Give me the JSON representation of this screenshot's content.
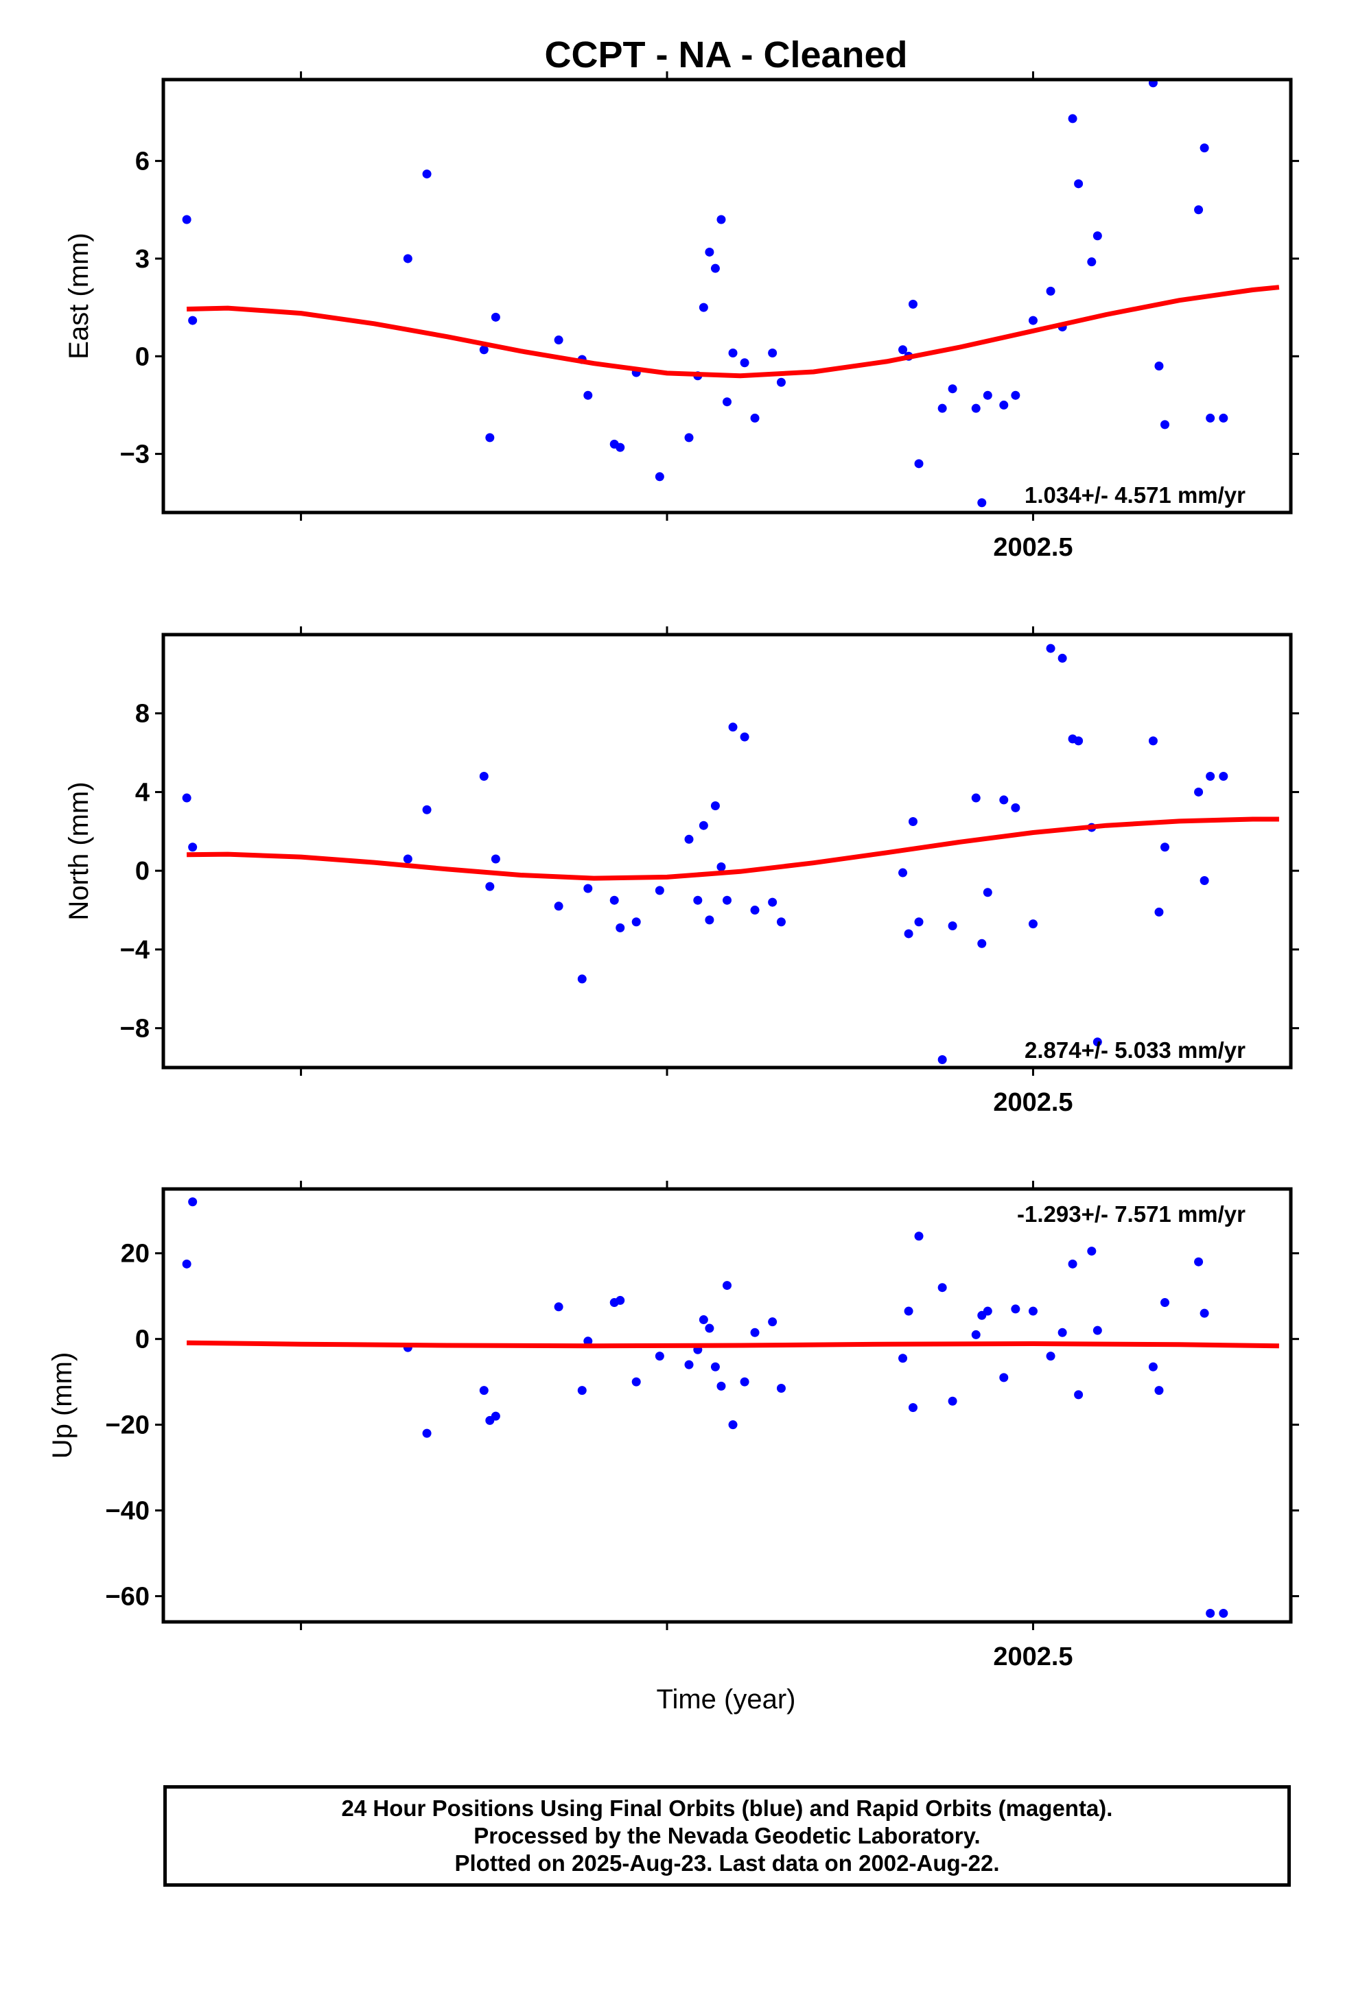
{
  "title": "CCPT  - NA - Cleaned",
  "xlabel": "Time (year)",
  "footer": {
    "line1": "24 Hour Positions Using Final Orbits (blue) and Rapid Orbits (magenta).",
    "line2": "Processed by the Nevada Geodetic Laboratory.",
    "line3": "Plotted on 2025-Aug-23. Last data on 2002-Aug-22."
  },
  "colors": {
    "points": "#0000ff",
    "fit": "#ff0000",
    "frame": "#000000"
  },
  "chart_data": [
    {
      "type": "scatter",
      "ylabel": "East (mm)",
      "rate": "1.034+/- 4.571 mm/yr",
      "xlim": [
        2001.906,
        2002.676
      ],
      "ylim": [
        -4.8,
        8.5
      ],
      "xticks": [
        2002.5
      ],
      "yticks": [
        6,
        3,
        0,
        -3
      ],
      "ytick_labels": [
        "6",
        "3",
        "0",
        "−3"
      ],
      "x": [
        2001.922,
        2001.926,
        2002.073,
        2002.086,
        2002.125,
        2002.129,
        2002.133,
        2002.176,
        2002.192,
        2002.196,
        2002.214,
        2002.218,
        2002.229,
        2002.245,
        2002.265,
        2002.271,
        2002.275,
        2002.279,
        2002.283,
        2002.287,
        2002.291,
        2002.295,
        2002.303,
        2002.31,
        2002.322,
        2002.328,
        2002.411,
        2002.415,
        2002.418,
        2002.422,
        2002.438,
        2002.445,
        2002.461,
        2002.465,
        2002.469,
        2002.48,
        2002.488,
        2002.5,
        2002.512,
        2002.52,
        2002.527,
        2002.531,
        2002.54,
        2002.544,
        2002.582,
        2002.586,
        2002.59,
        2002.613,
        2002.617,
        2002.621,
        2002.63
      ],
      "y": [
        4.2,
        1.1,
        3.0,
        5.6,
        0.2,
        -2.5,
        1.2,
        0.5,
        -0.1,
        -1.2,
        -2.7,
        -2.8,
        -0.5,
        -3.7,
        -2.5,
        -0.6,
        1.5,
        3.2,
        2.7,
        4.2,
        -1.4,
        0.1,
        -0.2,
        -1.9,
        0.1,
        -0.8,
        0.2,
        0.0,
        1.6,
        -3.3,
        -1.6,
        -1.0,
        -1.6,
        -4.5,
        -1.2,
        -1.5,
        -1.2,
        1.1,
        2.0,
        0.9,
        7.3,
        5.3,
        2.9,
        3.7,
        8.4,
        -0.3,
        -2.1,
        4.5,
        6.4,
        -1.9,
        -1.9
      ],
      "fit": [
        [
          2001.922,
          1.45
        ],
        [
          2001.95,
          1.48
        ],
        [
          2002.0,
          1.32
        ],
        [
          2002.05,
          1.0
        ],
        [
          2002.1,
          0.6
        ],
        [
          2002.15,
          0.16
        ],
        [
          2002.2,
          -0.22
        ],
        [
          2002.25,
          -0.52
        ],
        [
          2002.3,
          -0.6
        ],
        [
          2002.35,
          -0.48
        ],
        [
          2002.4,
          -0.16
        ],
        [
          2002.45,
          0.28
        ],
        [
          2002.5,
          0.78
        ],
        [
          2002.55,
          1.28
        ],
        [
          2002.6,
          1.72
        ],
        [
          2002.65,
          2.04
        ],
        [
          2002.668,
          2.12
        ]
      ]
    },
    {
      "type": "scatter",
      "ylabel": "North (mm)",
      "rate": "2.874+/- 5.033 mm/yr",
      "xlim": [
        2001.906,
        2002.676
      ],
      "ylim": [
        -10.0,
        12.0
      ],
      "xticks": [
        2002.5
      ],
      "yticks": [
        8,
        4,
        0,
        -4,
        -8
      ],
      "ytick_labels": [
        "8",
        "4",
        "0",
        "−4",
        "−8"
      ],
      "x": [
        2001.922,
        2001.926,
        2002.073,
        2002.086,
        2002.125,
        2002.129,
        2002.133,
        2002.176,
        2002.192,
        2002.196,
        2002.214,
        2002.218,
        2002.229,
        2002.245,
        2002.265,
        2002.271,
        2002.275,
        2002.279,
        2002.283,
        2002.287,
        2002.291,
        2002.295,
        2002.303,
        2002.31,
        2002.322,
        2002.328,
        2002.411,
        2002.415,
        2002.418,
        2002.422,
        2002.438,
        2002.445,
        2002.461,
        2002.465,
        2002.469,
        2002.48,
        2002.488,
        2002.5,
        2002.512,
        2002.52,
        2002.527,
        2002.531,
        2002.54,
        2002.544,
        2002.582,
        2002.586,
        2002.59,
        2002.613,
        2002.617,
        2002.621,
        2002.63
      ],
      "y": [
        3.7,
        1.2,
        0.6,
        3.1,
        4.8,
        -0.8,
        0.6,
        -1.8,
        -5.5,
        -0.9,
        -1.5,
        -2.9,
        -2.6,
        -1.0,
        1.6,
        -1.5,
        2.3,
        -2.5,
        3.3,
        0.2,
        -1.5,
        7.3,
        6.8,
        -2.0,
        -1.6,
        -2.6,
        -0.1,
        -3.2,
        2.5,
        -2.6,
        -9.6,
        -2.8,
        3.7,
        -3.7,
        -1.1,
        3.6,
        3.2,
        -2.7,
        11.3,
        10.8,
        6.7,
        6.6,
        2.2,
        -8.7,
        6.6,
        -2.1,
        1.2,
        4.0,
        -0.5,
        4.8,
        4.8
      ],
      "fit": [
        [
          2001.922,
          0.82
        ],
        [
          2001.95,
          0.84
        ],
        [
          2002.0,
          0.7
        ],
        [
          2002.05,
          0.42
        ],
        [
          2002.1,
          0.08
        ],
        [
          2002.15,
          -0.22
        ],
        [
          2002.2,
          -0.38
        ],
        [
          2002.25,
          -0.32
        ],
        [
          2002.3,
          -0.04
        ],
        [
          2002.35,
          0.4
        ],
        [
          2002.4,
          0.92
        ],
        [
          2002.45,
          1.46
        ],
        [
          2002.5,
          1.94
        ],
        [
          2002.55,
          2.3
        ],
        [
          2002.6,
          2.52
        ],
        [
          2002.65,
          2.62
        ],
        [
          2002.668,
          2.62
        ]
      ]
    },
    {
      "type": "scatter",
      "ylabel": "Up (mm)",
      "rate": "-1.293+/- 7.571 mm/yr",
      "xlim": [
        2001.906,
        2002.676
      ],
      "ylim": [
        -66,
        35
      ],
      "xticks": [
        2002.5
      ],
      "yticks": [
        20,
        0,
        -20,
        -40,
        -60
      ],
      "ytick_labels": [
        "20",
        "0",
        "−20",
        "−40",
        "−60"
      ],
      "x": [
        2001.922,
        2001.926,
        2002.073,
        2002.086,
        2002.125,
        2002.129,
        2002.133,
        2002.176,
        2002.192,
        2002.196,
        2002.214,
        2002.218,
        2002.229,
        2002.245,
        2002.265,
        2002.271,
        2002.275,
        2002.279,
        2002.283,
        2002.287,
        2002.291,
        2002.295,
        2002.303,
        2002.31,
        2002.322,
        2002.328,
        2002.411,
        2002.415,
        2002.418,
        2002.422,
        2002.438,
        2002.445,
        2002.461,
        2002.465,
        2002.469,
        2002.48,
        2002.488,
        2002.5,
        2002.512,
        2002.52,
        2002.527,
        2002.531,
        2002.54,
        2002.544,
        2002.582,
        2002.586,
        2002.59,
        2002.613,
        2002.617,
        2002.621,
        2002.63
      ],
      "y": [
        17.5,
        32,
        -2,
        -22,
        -12,
        -19,
        -18,
        7.5,
        -12,
        -0.5,
        8.5,
        9,
        -10,
        -4,
        -6,
        -2.5,
        4.5,
        2.5,
        -6.5,
        -11,
        12.5,
        -20,
        -10,
        1.5,
        4,
        -11.5,
        -4.5,
        6.5,
        -16,
        24,
        12,
        -14.5,
        1,
        5.5,
        6.5,
        -9,
        7,
        6.5,
        -4,
        1.5,
        17.5,
        -13,
        20.5,
        2,
        -6.5,
        -12,
        8.5,
        18,
        6,
        -64,
        -64
      ],
      "fit": [
        [
          2001.922,
          -0.9
        ],
        [
          2002.0,
          -1.2
        ],
        [
          2002.1,
          -1.5
        ],
        [
          2002.2,
          -1.6
        ],
        [
          2002.3,
          -1.5
        ],
        [
          2002.4,
          -1.2
        ],
        [
          2002.5,
          -1.1
        ],
        [
          2002.6,
          -1.3
        ],
        [
          2002.668,
          -1.6
        ]
      ]
    }
  ]
}
